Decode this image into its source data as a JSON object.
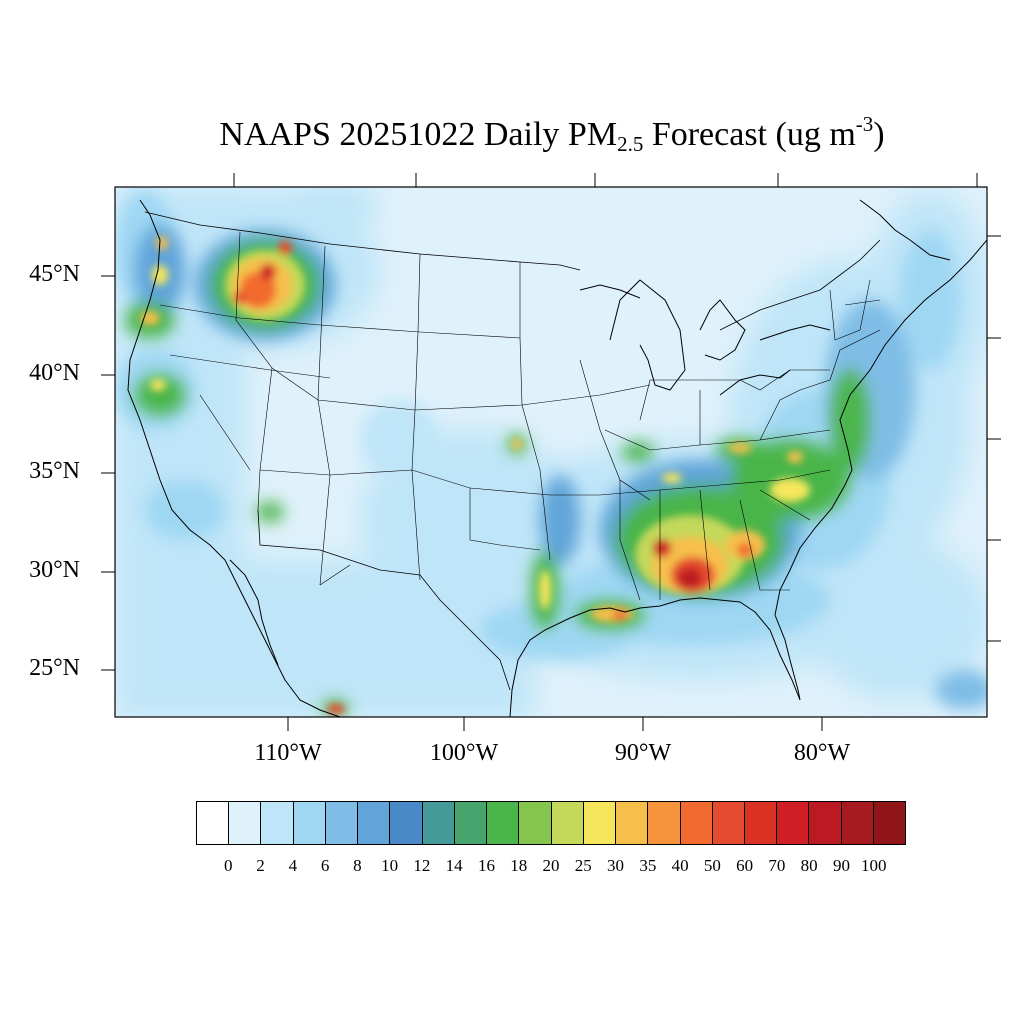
{
  "title": {
    "main": "NAAPS 20251022 Daily PM",
    "sub": "2.5",
    "after": " Forecast (ug m",
    "sup": "-3",
    "close": ")"
  },
  "axes": {
    "lat_labels": [
      "45°N",
      "40°N",
      "35°N",
      "30°N",
      "25°N"
    ],
    "lon_labels": [
      "110°W",
      "100°W",
      "90°W",
      "80°W"
    ]
  },
  "colorbar": {
    "colors": [
      "#ffffff",
      "#dff1fb",
      "#bfe5f8",
      "#9fd7f3",
      "#7fbde6",
      "#60a4d9",
      "#4a89c7",
      "#449a98",
      "#46a46d",
      "#4ab54a",
      "#86c54d",
      "#c4d85a",
      "#f6e65c",
      "#f6bf4c",
      "#f5943c",
      "#f26a2e",
      "#e54b2e",
      "#dc3226",
      "#cf1f25",
      "#bb1a22",
      "#a71a1f",
      "#8f1519"
    ],
    "labels": [
      "0",
      "2",
      "4",
      "6",
      "8",
      "10",
      "12",
      "14",
      "16",
      "18",
      "20",
      "25",
      "30",
      "35",
      "40",
      "50",
      "60",
      "70",
      "80",
      "90",
      "100"
    ]
  },
  "pollution_areas": [
    {
      "region": "Idaho / western Montana smoke",
      "level": "40-70"
    },
    {
      "region": "Washington / Oregon coast",
      "level": "20-35"
    },
    {
      "region": "Northern California",
      "level": "16-25"
    },
    {
      "region": "Alabama / Mississippi / Georgia",
      "level": "35-90"
    },
    {
      "region": "Southeast Louisiana",
      "level": "25-50"
    },
    {
      "region": "Carolinas / Virginia",
      "level": "16-35"
    },
    {
      "region": "Texas / Louisiana border",
      "level": "16-30"
    }
  ]
}
